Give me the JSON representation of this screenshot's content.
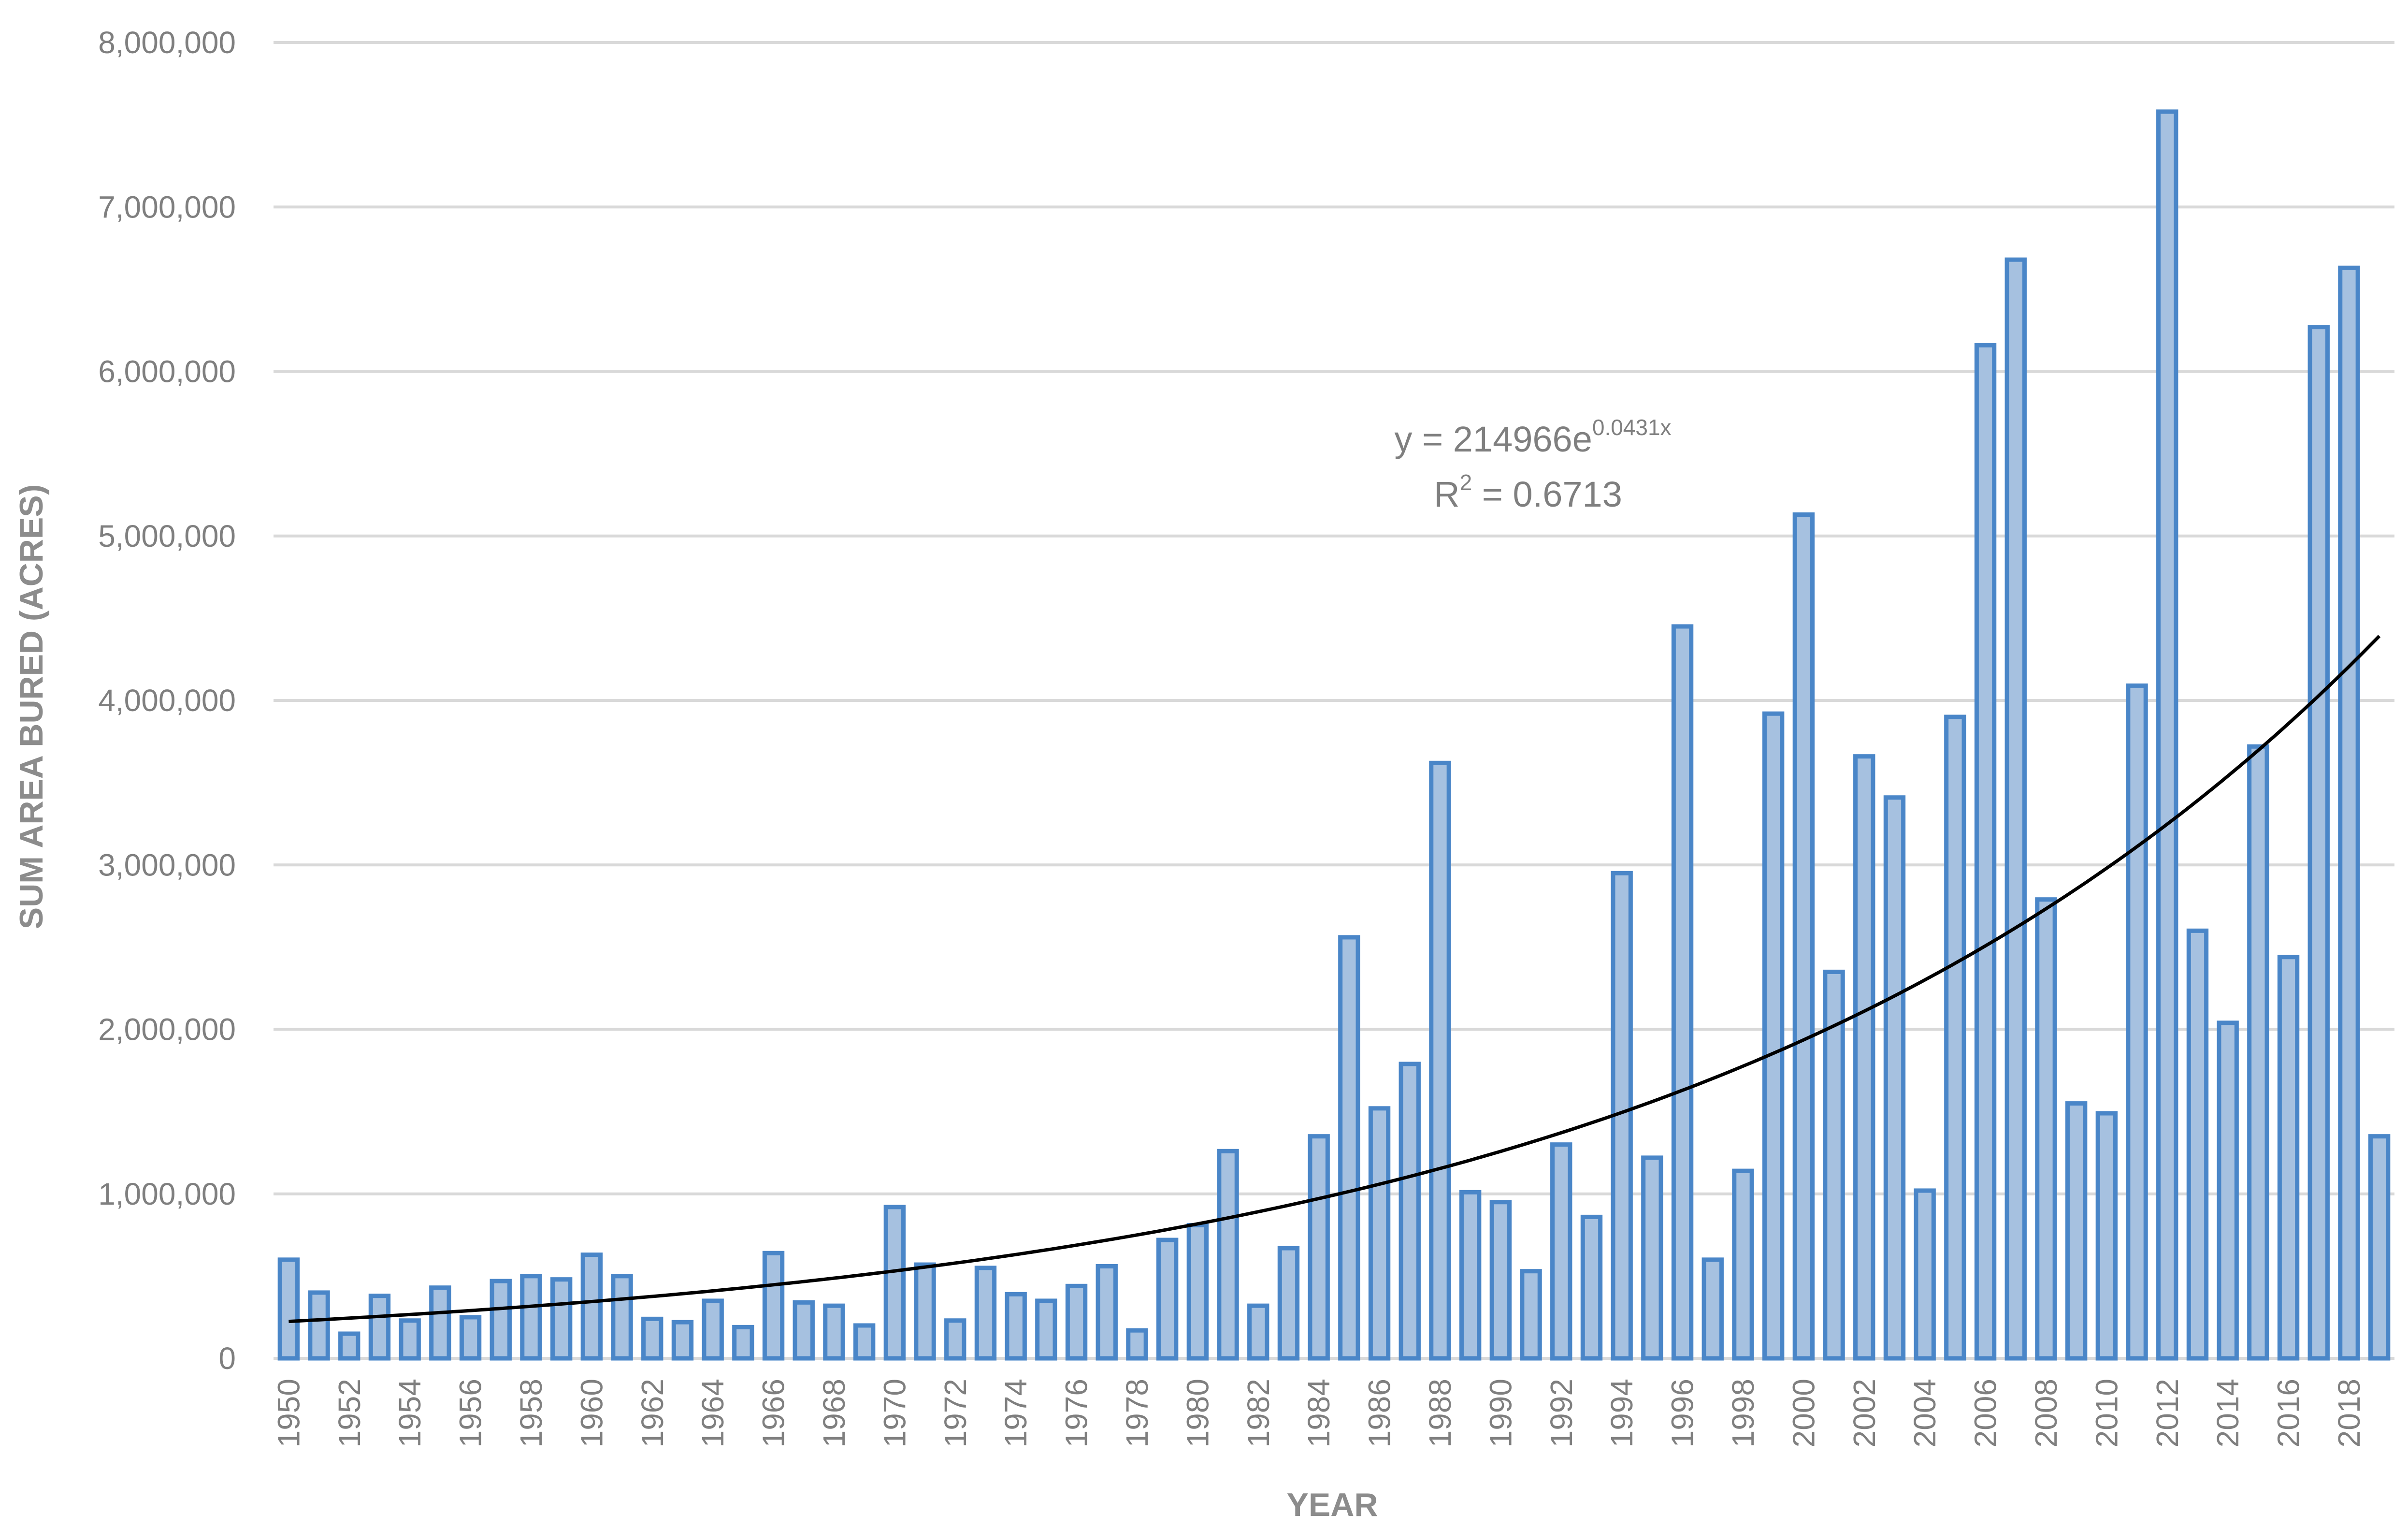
{
  "chart_data": {
    "type": "bar",
    "title": "",
    "xlabel": "YEAR",
    "ylabel": "SUM AREA BURED (ACRES)",
    "ylim": [
      0,
      8000000
    ],
    "yticks": [
      "0",
      "1,000,000",
      "2,000,000",
      "3,000,000",
      "4,000,000",
      "5,000,000",
      "6,000,000",
      "7,000,000",
      "8,000,000"
    ],
    "ytick_values": [
      0,
      1000000,
      2000000,
      3000000,
      4000000,
      5000000,
      6000000,
      7000000,
      8000000
    ],
    "categories": [
      "1950",
      "1951",
      "1952",
      "1953",
      "1954",
      "1955",
      "1956",
      "1957",
      "1958",
      "1959",
      "1960",
      "1961",
      "1962",
      "1963",
      "1964",
      "1965",
      "1966",
      "1967",
      "1968",
      "1969",
      "1970",
      "1971",
      "1972",
      "1973",
      "1974",
      "1975",
      "1976",
      "1977",
      "1978",
      "1979",
      "1980",
      "1981",
      "1982",
      "1983",
      "1984",
      "1985",
      "1986",
      "1987",
      "1988",
      "1989",
      "1990",
      "1991",
      "1992",
      "1993",
      "1994",
      "1995",
      "1996",
      "1997",
      "1998",
      "1999",
      "2000",
      "2001",
      "2002",
      "2003",
      "2004",
      "2005",
      "2006",
      "2007",
      "2008",
      "2009",
      "2010",
      "2011",
      "2012",
      "2013",
      "2014",
      "2015",
      "2016",
      "2017",
      "2018",
      "2019"
    ],
    "visible_xticks": [
      "1950",
      "1952",
      "1954",
      "1956",
      "1958",
      "1960",
      "1962",
      "1964",
      "1966",
      "1968",
      "1970",
      "1972",
      "1974",
      "1976",
      "1978",
      "1980",
      "1982",
      "1984",
      "1986",
      "1988",
      "1990",
      "1992",
      "1994",
      "1996",
      "1998",
      "2000",
      "2002",
      "2004",
      "2006",
      "2008",
      "2010",
      "2012",
      "2014",
      "2016",
      "2018"
    ],
    "values": [
      600000,
      400000,
      150000,
      380000,
      230000,
      430000,
      250000,
      470000,
      500000,
      480000,
      630000,
      500000,
      240000,
      220000,
      350000,
      190000,
      640000,
      340000,
      320000,
      200000,
      920000,
      570000,
      230000,
      550000,
      390000,
      350000,
      440000,
      560000,
      170000,
      720000,
      810000,
      1260000,
      320000,
      670000,
      1350000,
      2560000,
      1520000,
      1790000,
      3620000,
      1010000,
      950000,
      530000,
      1300000,
      860000,
      2950000,
      1220000,
      4450000,
      600000,
      1140000,
      3920000,
      5130000,
      2350000,
      3660000,
      3410000,
      1020000,
      3900000,
      6160000,
      6680000,
      2790000,
      1550000,
      1490000,
      4090000,
      7580000,
      2600000,
      2040000,
      3720000,
      2440000,
      6270000,
      6630000,
      1350000
    ],
    "trendline": {
      "type": "exponential",
      "a": 214966,
      "b": 0.0431,
      "equation_prefix": "y = 214966e",
      "equation_exponent": "0.0431x",
      "r2_prefix": "R",
      "r2_exponent": "2",
      "r2_suffix": " = 0.6713"
    },
    "grid": true,
    "legend": "none",
    "colors": {
      "bar_fill": "#a6c1e0",
      "bar_stroke": "#4a86c8",
      "gridline": "#d9d9d9",
      "trendline": "#000000",
      "text": "#7f7f7f"
    }
  }
}
